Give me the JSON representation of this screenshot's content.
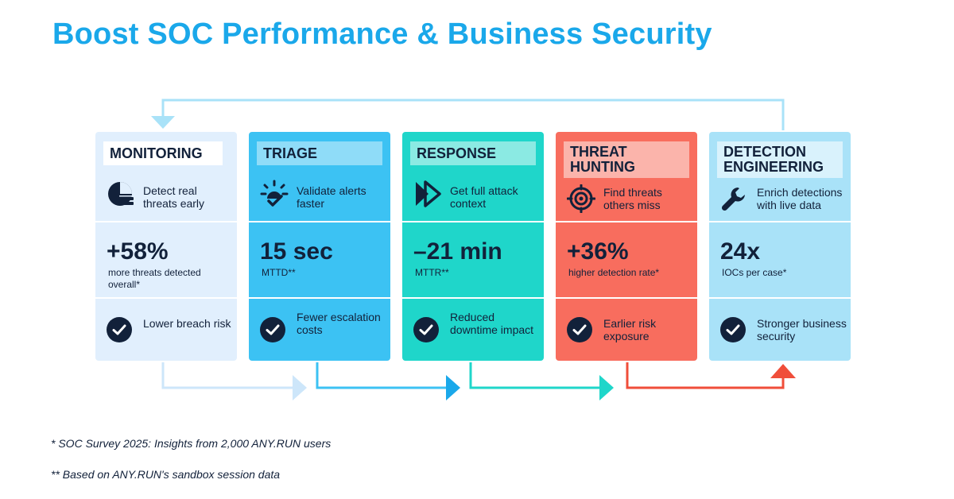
{
  "title": "Boost SOC Performance & Business Security",
  "cards": [
    {
      "tag": "MONITORING",
      "function": "Detect real threats early",
      "stat_value": "+58%",
      "stat_label": "more threats detected overall*",
      "result": "Lower breach risk",
      "icon": "radar-icon"
    },
    {
      "tag": "TRIAGE",
      "function": "Validate alerts faster",
      "stat_value": "15 sec",
      "stat_label": "MTTD**",
      "result": "Fewer escalation costs",
      "icon": "sun-check-icon"
    },
    {
      "tag": "RESPONSE",
      "function": "Get full attack context",
      "stat_value": "–21 min",
      "stat_label": "MTTR**",
      "result": "Reduced downtime impact",
      "icon": "fast-forward-icon"
    },
    {
      "tag": "THREAT HUNTING",
      "function": "Find threats others miss",
      "stat_value": "+36%",
      "stat_label": "higher detection rate*",
      "result": "Earlier risk exposure",
      "icon": "crosshair-icon"
    },
    {
      "tag": "DETECTION ENGINEERING",
      "function": "Enrich detections with live data",
      "stat_value": "24x",
      "stat_label": "IOCs per case*",
      "result": "Stronger business security",
      "icon": "wrench-icon"
    }
  ],
  "footnotes": [
    "* SOC Survey 2025: Insights from 2,000 ANY.RUN users",
    "** Based on ANY.RUN's sandbox session data"
  ],
  "colors": {
    "title": "#1aa8ea",
    "ink": "#12213a",
    "monitoring": "#dcecfc",
    "triage": "#3cc2f3",
    "response": "#1fd6ca",
    "threat_hunting": "#f86d5e",
    "detection_engineering": "#a9e2f8"
  }
}
